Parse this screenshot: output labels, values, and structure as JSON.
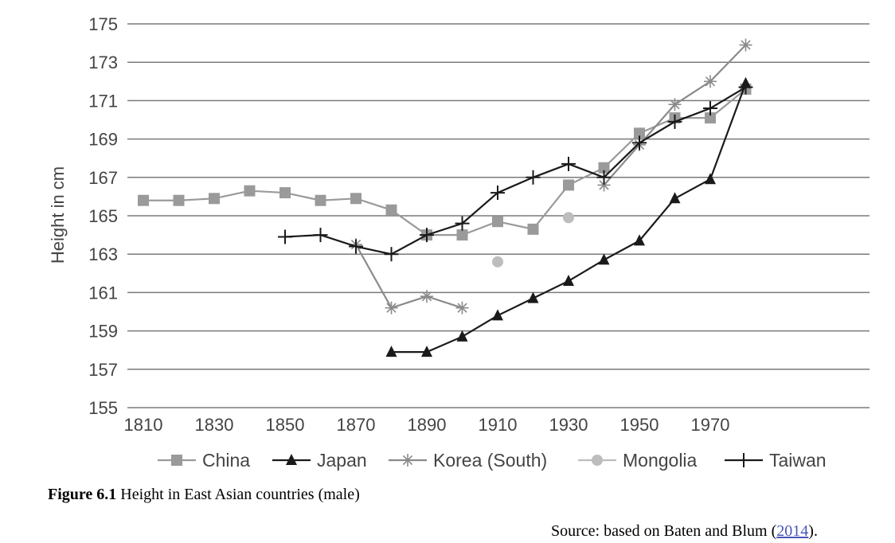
{
  "chart_data": {
    "type": "line",
    "ylabel": "Height in cm",
    "xlabel": "",
    "xlim": [
      1800,
      2010
    ],
    "ylim": [
      155,
      175
    ],
    "x_ticks": [
      1810,
      1830,
      1850,
      1870,
      1890,
      1910,
      1930,
      1950,
      1970
    ],
    "y_ticks": [
      155,
      157,
      159,
      161,
      163,
      165,
      167,
      169,
      171,
      173,
      175
    ],
    "grid": "horizontal",
    "legend_position": "bottom",
    "series": [
      {
        "name": "China",
        "color": "#9a9a9a",
        "marker": "square",
        "points": [
          [
            1810,
            165.8
          ],
          [
            1820,
            165.8
          ],
          [
            1830,
            165.9
          ],
          [
            1840,
            166.3
          ],
          [
            1850,
            166.2
          ],
          [
            1860,
            165.8
          ],
          [
            1870,
            165.9
          ],
          [
            1880,
            165.3
          ],
          [
            1890,
            164.0
          ],
          [
            1900,
            164.0
          ],
          [
            1910,
            164.7
          ],
          [
            1920,
            164.3
          ],
          [
            1930,
            166.6
          ],
          [
            1940,
            167.5
          ],
          [
            1950,
            169.3
          ],
          [
            1960,
            170.1
          ],
          [
            1970,
            170.1
          ],
          [
            1980,
            171.6
          ]
        ]
      },
      {
        "name": "Japan",
        "color": "#1a1a1a",
        "marker": "triangle",
        "points": [
          [
            1880,
            157.9
          ],
          [
            1890,
            157.9
          ],
          [
            1900,
            158.7
          ],
          [
            1910,
            159.8
          ],
          [
            1920,
            160.7
          ],
          [
            1930,
            161.6
          ],
          [
            1940,
            162.7
          ],
          [
            1950,
            163.7
          ],
          [
            1960,
            165.9
          ],
          [
            1970,
            166.9
          ],
          [
            1980,
            171.9
          ]
        ]
      },
      {
        "name": "Korea (South)",
        "color": "#8a8a8a",
        "marker": "asterisk",
        "points": [
          [
            1870,
            163.5
          ],
          [
            1880,
            160.2
          ],
          [
            1890,
            160.8
          ],
          [
            1900,
            160.2
          ],
          [
            null,
            null
          ],
          [
            1940,
            166.6
          ],
          [
            1950,
            168.7
          ],
          [
            1960,
            170.8
          ],
          [
            1970,
            172.0
          ],
          [
            1980,
            173.9
          ]
        ]
      },
      {
        "name": "Mongolia",
        "color": "#bdbdbd",
        "marker": "circle",
        "points": [
          [
            1910,
            162.6
          ],
          [
            1930,
            164.9
          ]
        ]
      },
      {
        "name": "Taiwan",
        "color": "#1a1a1a",
        "marker": "plus",
        "points": [
          [
            1850,
            163.9
          ],
          [
            1860,
            164.0
          ],
          [
            1870,
            163.4
          ],
          [
            1880,
            163.0
          ],
          [
            1890,
            164.0
          ],
          [
            1900,
            164.6
          ],
          [
            1910,
            166.2
          ],
          [
            1920,
            167.0
          ],
          [
            1930,
            167.7
          ],
          [
            1940,
            167.0
          ],
          [
            1950,
            168.8
          ],
          [
            1960,
            169.9
          ],
          [
            1970,
            170.6
          ],
          [
            1980,
            171.7
          ]
        ]
      }
    ]
  },
  "caption": {
    "label": "Figure 6.1",
    "text": "Height in East Asian countries (male)"
  },
  "source": {
    "prefix": "Source: based on Baten and Blum (",
    "link": "2014",
    "suffix": ")."
  }
}
